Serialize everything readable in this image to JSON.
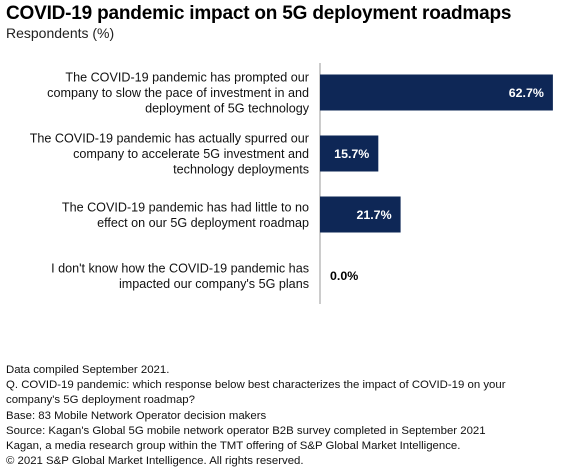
{
  "title": "COVID-19 pandemic impact on 5G deployment roadmaps",
  "subtitle": "Respondents (%)",
  "colors": {
    "bar": "#0e2756",
    "inside_label": "#ffffff",
    "outside_label": "#000000",
    "axis": "#9a9a9a"
  },
  "chart_data": {
    "type": "bar",
    "orientation": "horizontal",
    "title": "COVID-19 pandemic impact on 5G deployment roadmaps",
    "subtitle": "Respondents (%)",
    "xlim": [
      0,
      70
    ],
    "categories": [
      [
        "The COVID-19 pandemic has prompted our",
        "company to slow the pace of investment in and",
        "deployment of 5G technology"
      ],
      [
        "The COVID-19 pandemic has actually spurred our",
        "company to accelerate 5G investment and",
        "technology deployments"
      ],
      [
        "The COVID-19 pandemic has had little to no",
        "effect on our 5G deployment roadmap"
      ],
      [
        "I don't know how the COVID-19 pandemic has",
        "impacted our company's 5G plans"
      ]
    ],
    "values": [
      62.7,
      15.7,
      21.7,
      0.0
    ],
    "value_labels": [
      "62.7%",
      "15.7%",
      "21.7%",
      "0.0%"
    ]
  },
  "footer": {
    "lines": [
      "Data compiled September 2021.",
      "Q. COVID-19 pandemic: which response below best characterizes the impact of COVID-19 on your",
      "company's 5G deployment roadmap?",
      "Base: 83 Mobile Network Operator decision makers",
      "Source: Kagan's Global 5G mobile network operator B2B survey completed in September 2021",
      "Kagan, a media research group within the TMT offering of S&P Global Market Intelligence.",
      "© 2021 S&P Global Market Intelligence. All rights reserved."
    ]
  }
}
